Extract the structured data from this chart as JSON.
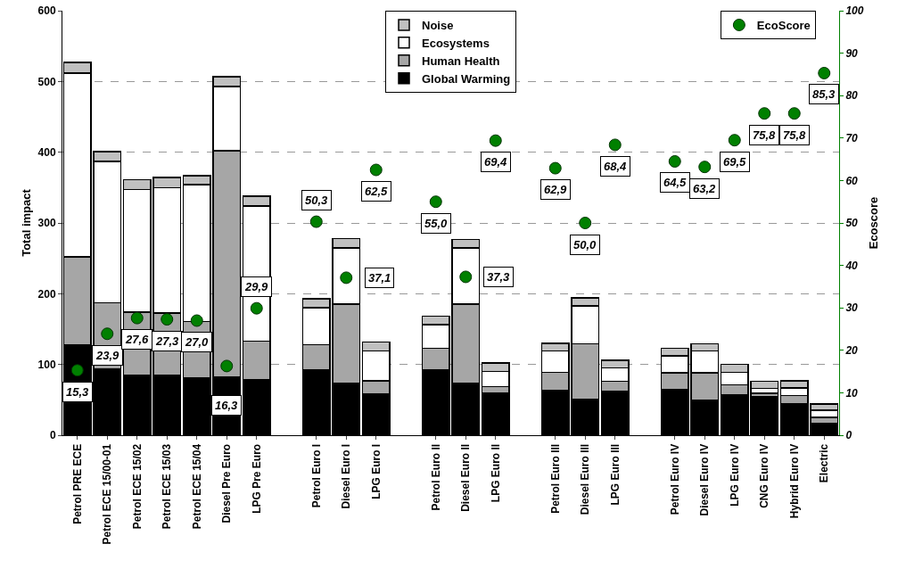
{
  "chart_data": {
    "type": "bar",
    "stacked": true,
    "ylabel": "Total impact",
    "y2label": "Ecoscore",
    "categories": [
      "Petrol PRE ECE",
      "Petrol ECE 15/00-01",
      "Petrol ECE 15/02",
      "Petrol ECE 15/03",
      "Petrol ECE 15/04",
      "Diesel Pre Euro",
      "LPG Pre Euro",
      null,
      "Petrol Euro I",
      "Diesel Euro I",
      "LPG Euro I",
      null,
      "Petrol Euro II",
      "Diesel Euro II",
      "LPG Euro II",
      null,
      "Petrol Euro III",
      "Diesel Euro III",
      "LPG Euro III",
      null,
      "Petrol Euro IV",
      "Diesel Euro IV",
      "LPG Euro IV",
      "CNG Euro IV",
      "Hybrid Euro IV",
      "Electric"
    ],
    "series": [
      {
        "name": "Global Warming",
        "color": "#000000",
        "values": [
          128,
          93,
          85,
          85,
          81,
          82,
          79,
          null,
          92,
          74,
          58,
          null,
          92,
          74,
          59,
          null,
          63,
          51,
          62,
          null,
          64,
          49,
          57,
          54,
          44,
          17
        ]
      },
      {
        "name": "Human Health",
        "color": "#a6a6a6",
        "values": [
          124,
          94,
          89,
          88,
          80,
          320,
          54,
          null,
          36,
          111,
          19,
          null,
          31,
          111,
          10,
          null,
          26,
          78,
          14,
          null,
          24,
          39,
          14,
          5,
          12,
          8
        ]
      },
      {
        "name": "Ecosystems",
        "color": "#ffffff",
        "values": [
          260,
          200,
          173,
          177,
          193,
          91,
          191,
          null,
          52,
          80,
          42,
          null,
          33,
          80,
          21,
          null,
          30,
          54,
          19,
          null,
          24,
          31,
          18,
          7,
          11,
          10
        ]
      },
      {
        "name": "Noise",
        "color": "#c0c0c0",
        "values": [
          15,
          14,
          14,
          14,
          13,
          14,
          14,
          null,
          13,
          13,
          13,
          null,
          12,
          12,
          12,
          null,
          11,
          11,
          11,
          null,
          11,
          10,
          11,
          10,
          10,
          9
        ]
      },
      {
        "name": "EcoScore",
        "type": "scatter",
        "axis": "y2",
        "marker": "circle",
        "color": "#008000",
        "values": [
          15.3,
          23.9,
          27.6,
          27.3,
          27.0,
          16.3,
          29.9,
          null,
          50.3,
          37.1,
          62.5,
          null,
          55.0,
          37.3,
          69.4,
          null,
          62.9,
          50.0,
          68.4,
          null,
          64.5,
          63.2,
          69.5,
          75.8,
          75.8,
          85.3
        ],
        "value_labels": [
          "15,3",
          "23,9",
          "27,6",
          "27,3",
          "27,0",
          "16,3",
          "29,9",
          null,
          "50,3",
          "37,1",
          "62,5",
          null,
          "55,0",
          "37,3",
          "69,4",
          null,
          "62,9",
          "50,0",
          "68,4",
          null,
          "64,5",
          "63,2",
          "69,5",
          "75,8",
          "75,8",
          "85,3"
        ]
      }
    ],
    "ylim": [
      0,
      600
    ],
    "yticks": [
      0,
      100,
      200,
      300,
      400,
      500,
      600
    ],
    "y2lim": [
      0,
      100
    ],
    "y2ticks": [
      0,
      10,
      20,
      30,
      40,
      50,
      60,
      70,
      80,
      90,
      100
    ],
    "grid": "y",
    "legend": "top"
  }
}
